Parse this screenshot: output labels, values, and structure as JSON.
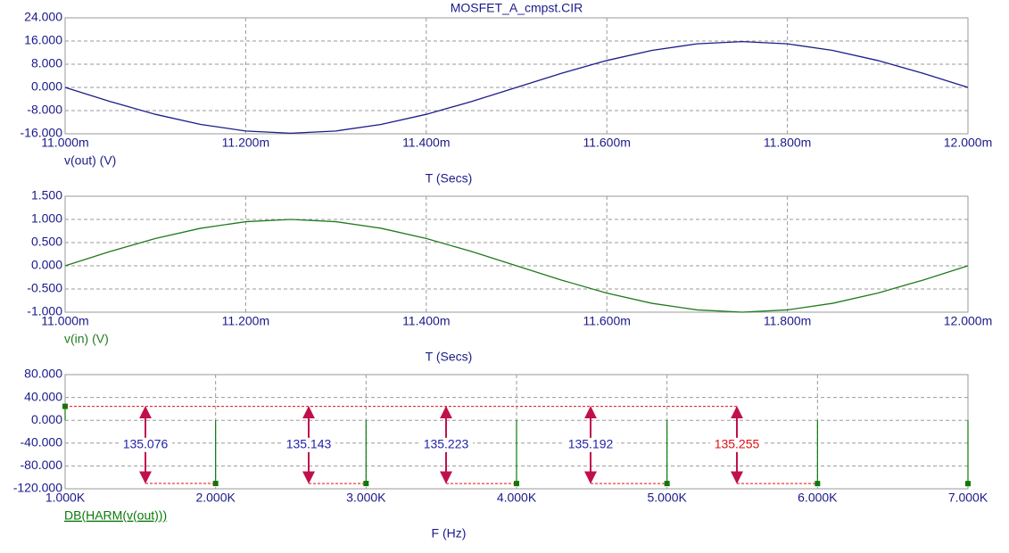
{
  "chart_data": [
    {
      "type": "line",
      "title": "MOSFET_A_cmpst.CIR",
      "x_label": "T (Secs)",
      "grid": true,
      "xlim": [
        0.011,
        0.012
      ],
      "xticks": [
        {
          "value": 0.011,
          "label": "11.000m"
        },
        {
          "value": 0.0112,
          "label": "11.200m"
        },
        {
          "value": 0.0114,
          "label": "11.400m"
        },
        {
          "value": 0.0116,
          "label": "11.600m"
        },
        {
          "value": 0.0118,
          "label": "11.800m"
        },
        {
          "value": 0.012,
          "label": "12.000m"
        }
      ],
      "ylim": [
        -16,
        24
      ],
      "yticks": [
        {
          "value": -16,
          "label": "-16.000"
        },
        {
          "value": -8,
          "label": "-8.000"
        },
        {
          "value": 0,
          "label": "0.000"
        },
        {
          "value": 8,
          "label": "8.000"
        },
        {
          "value": 16,
          "label": "16.000"
        },
        {
          "value": 24,
          "label": "24.000"
        }
      ],
      "x": [
        0.011,
        0.01105,
        0.0111,
        0.01115,
        0.0112,
        0.01125,
        0.0113,
        0.01135,
        0.0114,
        0.01145,
        0.0115,
        0.01155,
        0.0116,
        0.01165,
        0.0117,
        0.01175,
        0.0118,
        0.01185,
        0.0119,
        0.01195,
        0.012
      ],
      "series": [
        {
          "name": "v(out) (V)",
          "color": "#1c1c8a",
          "values": [
            0,
            -4.88,
            -9.29,
            -12.78,
            -15.03,
            -15.8,
            -15.03,
            -12.78,
            -9.29,
            -4.88,
            0,
            4.88,
            9.29,
            12.78,
            15.03,
            15.8,
            15.03,
            12.78,
            9.29,
            4.88,
            0
          ]
        }
      ]
    },
    {
      "type": "line",
      "x_label": "T (Secs)",
      "grid": true,
      "xlim": [
        0.011,
        0.012
      ],
      "xticks": [
        {
          "value": 0.011,
          "label": "11.000m"
        },
        {
          "value": 0.0112,
          "label": "11.200m"
        },
        {
          "value": 0.0114,
          "label": "11.400m"
        },
        {
          "value": 0.0116,
          "label": "11.600m"
        },
        {
          "value": 0.0118,
          "label": "11.800m"
        },
        {
          "value": 0.012,
          "label": "12.000m"
        }
      ],
      "ylim": [
        -1,
        1.5
      ],
      "yticks": [
        {
          "value": -1,
          "label": "-1.000"
        },
        {
          "value": -0.5,
          "label": "-0.500"
        },
        {
          "value": 0,
          "label": "0.000"
        },
        {
          "value": 0.5,
          "label": "0.500"
        },
        {
          "value": 1,
          "label": "1.000"
        },
        {
          "value": 1.5,
          "label": "1.500"
        }
      ],
      "x": [
        0.011,
        0.01105,
        0.0111,
        0.01115,
        0.0112,
        0.01125,
        0.0113,
        0.01135,
        0.0114,
        0.01145,
        0.0115,
        0.01155,
        0.0116,
        0.01165,
        0.0117,
        0.01175,
        0.0118,
        0.01185,
        0.0119,
        0.01195,
        0.012
      ],
      "series": [
        {
          "name": "v(in) (V)",
          "color": "#1f7a1f",
          "values": [
            0,
            0.309,
            0.588,
            0.809,
            0.951,
            1,
            0.951,
            0.809,
            0.588,
            0.309,
            0,
            -0.309,
            -0.588,
            -0.809,
            -0.951,
            -1,
            -0.951,
            -0.809,
            -0.588,
            -0.309,
            0
          ]
        }
      ]
    },
    {
      "type": "stem",
      "x_label": "F (Hz)",
      "grid": true,
      "xlim": [
        1000,
        7000
      ],
      "xticks": [
        {
          "value": 1000,
          "label": "1.000K"
        },
        {
          "value": 2000,
          "label": "2.000K"
        },
        {
          "value": 3000,
          "label": "3.000K"
        },
        {
          "value": 4000,
          "label": "4.000K"
        },
        {
          "value": 5000,
          "label": "5.000K"
        },
        {
          "value": 6000,
          "label": "6.000K"
        },
        {
          "value": 7000,
          "label": "7.000K"
        }
      ],
      "ylim": [
        -120,
        80
      ],
      "yticks": [
        {
          "value": -120,
          "label": "-120.000"
        },
        {
          "value": -80,
          "label": "-80.000"
        },
        {
          "value": -40,
          "label": "-40.000"
        },
        {
          "value": 0,
          "label": "0.000"
        },
        {
          "value": 40,
          "label": "40.000"
        },
        {
          "value": 80,
          "label": "80.000"
        }
      ],
      "x": [
        1000,
        2000,
        3000,
        4000,
        5000,
        6000,
        7000
      ],
      "series": [
        {
          "name": "DB(HARM(v(out)))",
          "color": "#0a7a0a",
          "values": [
            24.4,
            -110.68,
            -110.74,
            -110.82,
            -110.79,
            -110.86,
            -110.9
          ]
        }
      ],
      "annotations": [
        135.076,
        135.143,
        135.223,
        135.192,
        135.255
      ],
      "annotation_colors": [
        "#2222aa",
        "#2222aa",
        "#2222aa",
        "#2222aa",
        "#e01010"
      ]
    }
  ]
}
